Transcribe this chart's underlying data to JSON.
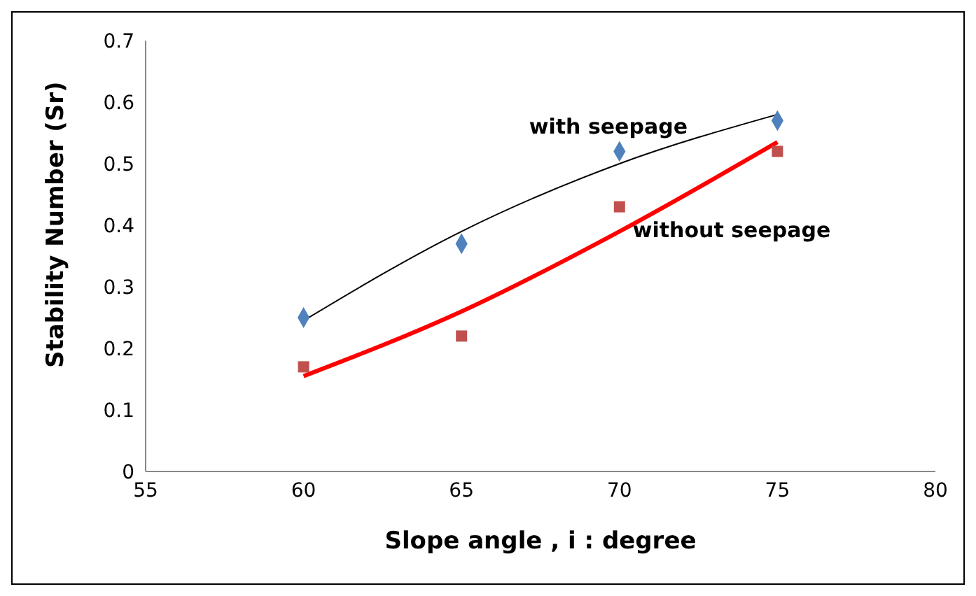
{
  "chart_data": {
    "type": "scatter",
    "xlabel": "Slope angle , i : degree",
    "ylabel": "Stability Number (Sr)",
    "xlim": [
      55,
      80
    ],
    "xticks": [
      55,
      60,
      65,
      70,
      75,
      80
    ],
    "ylim": [
      0,
      0.7
    ],
    "yticks": [
      0,
      0.1,
      0.2,
      0.3,
      0.4,
      0.5,
      0.6,
      0.7
    ],
    "grid": false,
    "legend": false,
    "series": [
      {
        "name": "with seepage",
        "marker": "diamond",
        "color": "#4f81bd",
        "x": [
          60,
          65,
          70,
          75
        ],
        "values": [
          0.25,
          0.37,
          0.52,
          0.57
        ]
      },
      {
        "name": "without seepage",
        "marker": "square",
        "color": "#c0504d",
        "x": [
          60,
          65,
          70,
          75
        ],
        "values": [
          0.17,
          0.22,
          0.43,
          0.52
        ]
      },
      {
        "type": "line",
        "marker": "none",
        "color": "#000000",
        "x": [
          60,
          65,
          70,
          75
        ],
        "values": [
          0.245,
          0.39,
          0.5,
          0.58
        ]
      },
      {
        "type": "line",
        "marker": "none",
        "color": "#ff0000",
        "x": [
          60,
          65,
          70,
          75
        ],
        "values": [
          0.155,
          0.26,
          0.39,
          0.535
        ]
      }
    ]
  }
}
